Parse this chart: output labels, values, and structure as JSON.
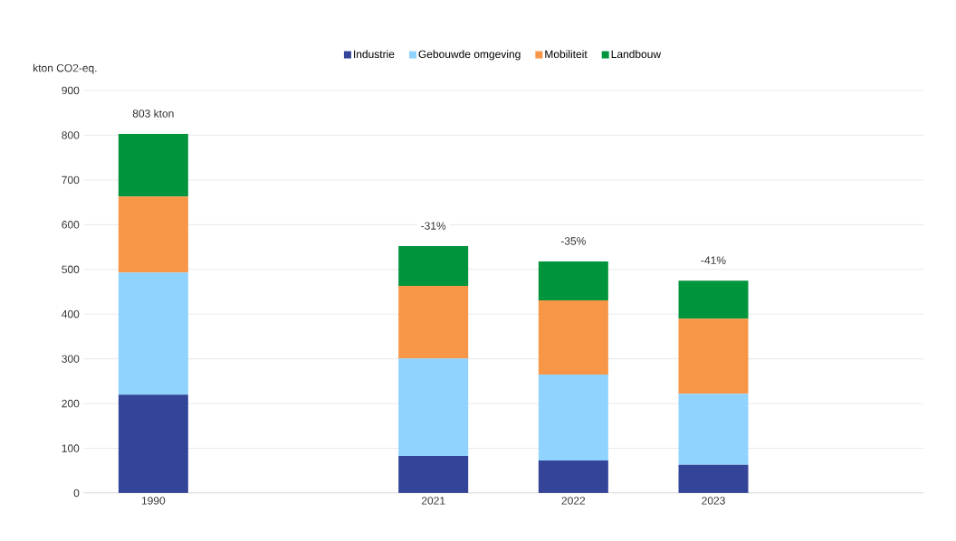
{
  "chart_data": {
    "type": "bar",
    "stacked": true,
    "ylabel": "kton CO2-eq.",
    "categories": [
      "1990",
      null,
      "2021",
      "2022",
      "2023",
      null
    ],
    "series": [
      {
        "name": "Industrie",
        "color": "#334499",
        "values": [
          220,
          null,
          83,
          73,
          63,
          null
        ]
      },
      {
        "name": "Gebouwde omgeving",
        "color": "#8fd3fe",
        "values": [
          273,
          null,
          218,
          192,
          159,
          null
        ]
      },
      {
        "name": "Mobiliteit",
        "color": "#f79646",
        "values": [
          170,
          null,
          162,
          166,
          168,
          null
        ]
      },
      {
        "name": "Landbouw",
        "color": "#00943c",
        "values": [
          140,
          null,
          89,
          87,
          85,
          null
        ]
      }
    ],
    "ylim": [
      0,
      900
    ],
    "yticks": [
      0,
      100,
      200,
      300,
      400,
      500,
      600,
      700,
      800,
      900
    ],
    "grid": "y",
    "legend": "top",
    "annotations": [
      {
        "text": "803 kton",
        "x": "1990",
        "y": 803
      },
      {
        "text": "-31%",
        "x": "2021",
        "y": 552
      },
      {
        "text": "-35%",
        "x": "2022",
        "y": 518
      },
      {
        "text": "-41%",
        "x": "2023",
        "y": 475
      }
    ]
  }
}
